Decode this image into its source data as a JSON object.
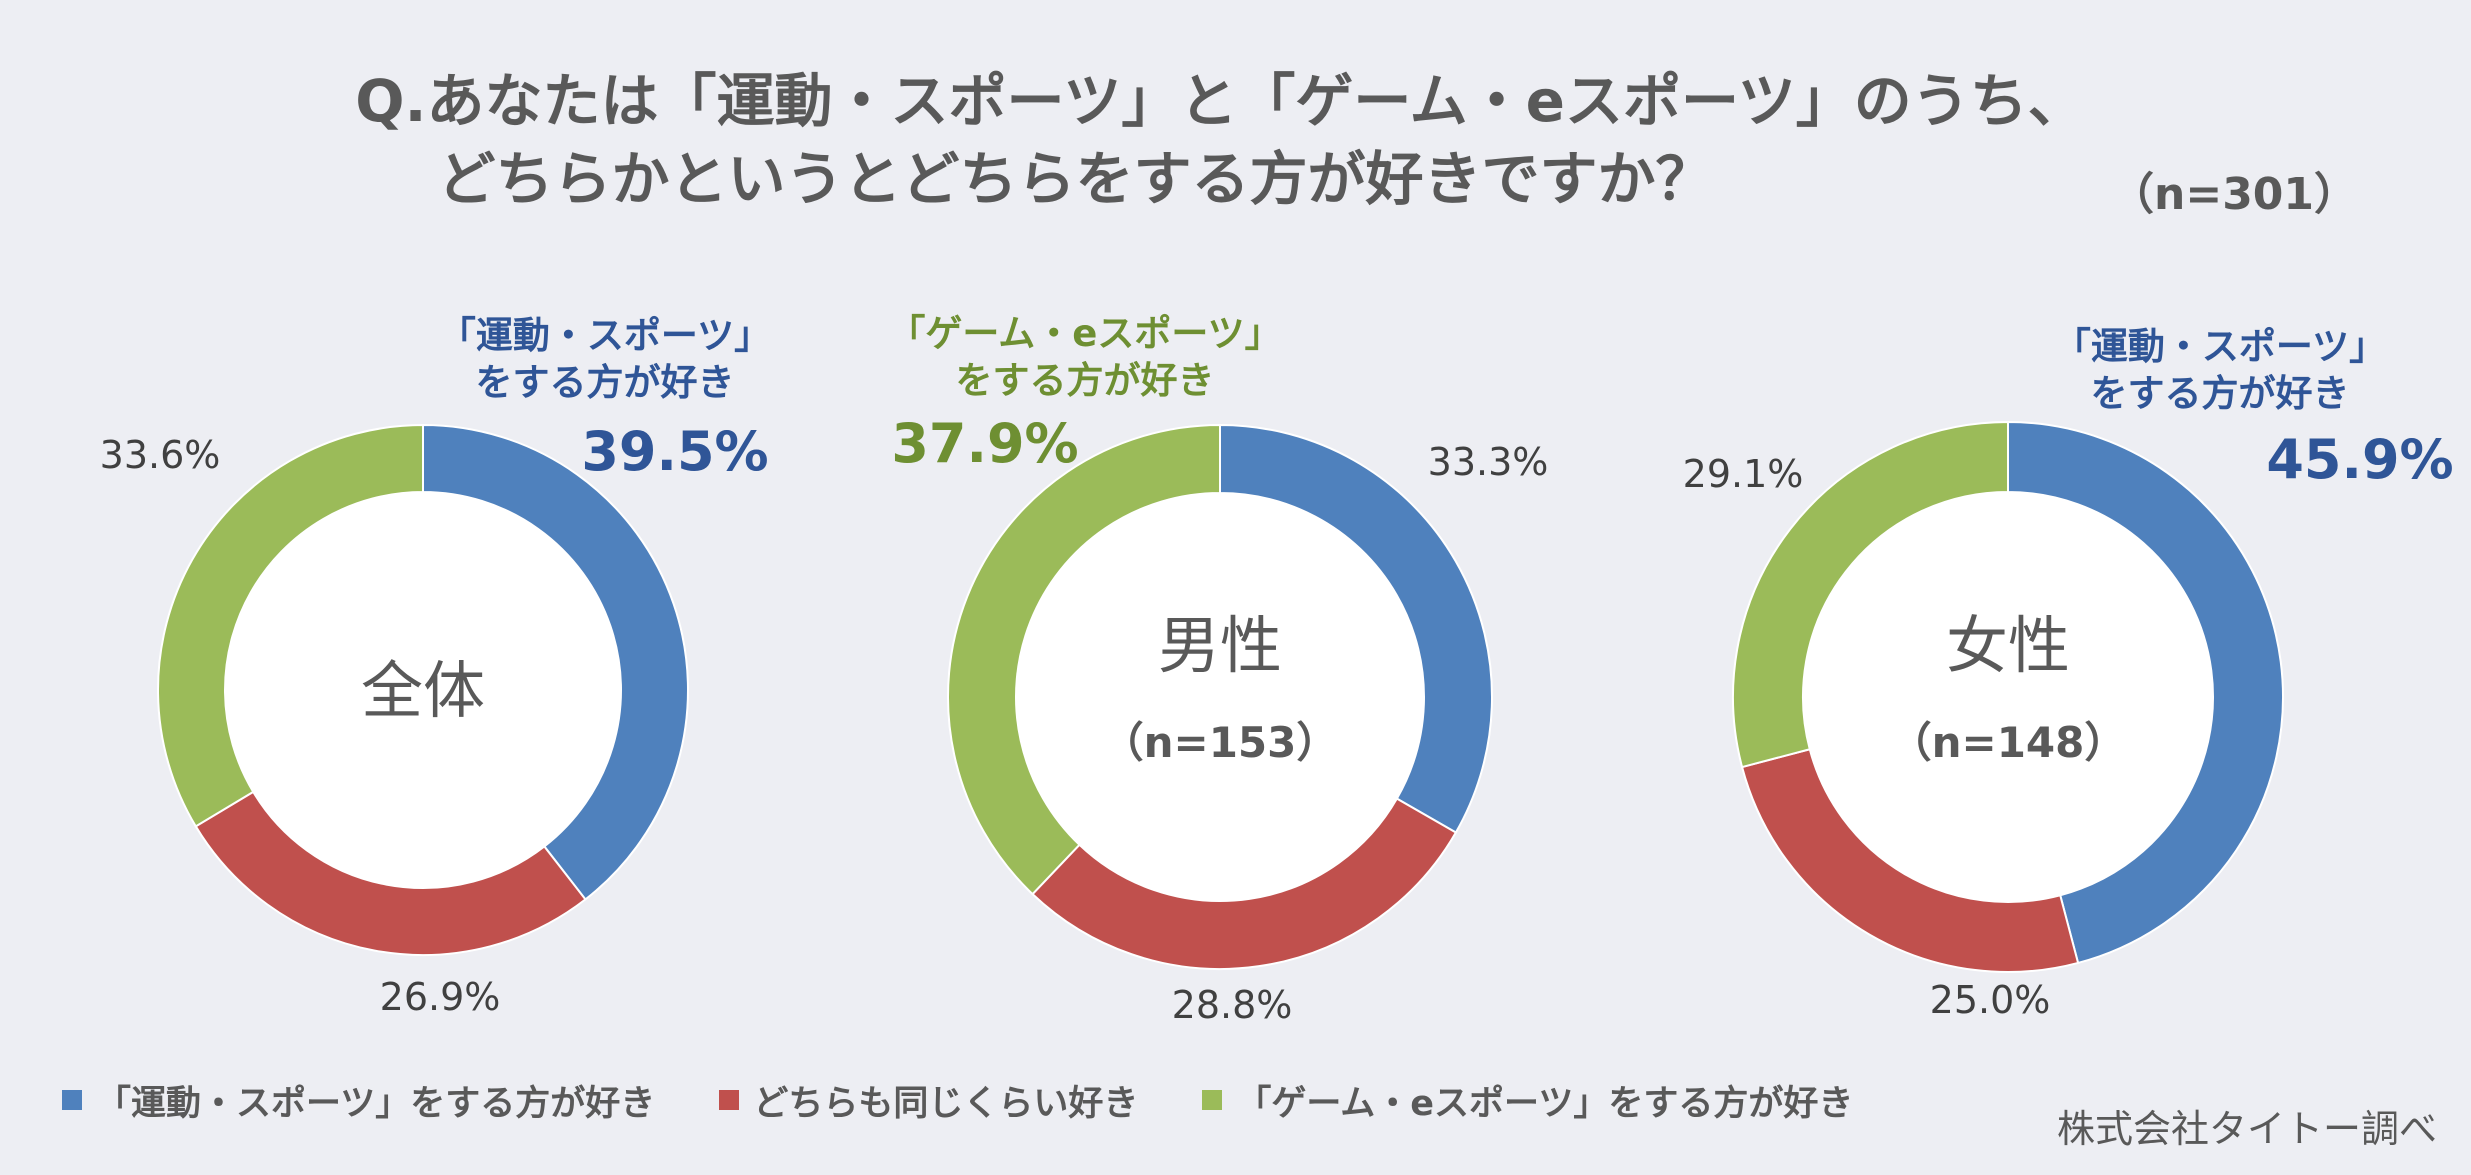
{
  "title": {
    "line1": "Q.あなたは「運動・スポーツ」と「ゲーム・eスポーツ」のうち、",
    "line2": "どちらかというとどちらをする方が好きですか？",
    "n": "（n=301）"
  },
  "colors": {
    "sports": "#4f81bd",
    "same": "#c0504d",
    "game": "#9bbb59",
    "sports_text": "#2f5597",
    "game_text": "#6e8f32"
  },
  "chart_data": {
    "type": "pie",
    "series_names": [
      "「運動・スポーツ」をする方が好き",
      "どちらも同じくらい好き",
      "「ゲーム・eスポーツ」をする方が好き"
    ],
    "charts": [
      {
        "center_label": "全体",
        "sub_label": "",
        "values": [
          39.5,
          26.9,
          33.6
        ],
        "value_labels": [
          "39.5%",
          "26.9%",
          "33.6%"
        ],
        "highlight_index": 0,
        "highlight_title_line1": "「運動・スポーツ」",
        "highlight_title_line2": "をする方が好き"
      },
      {
        "center_label": "男性",
        "sub_label": "（n=153）",
        "values": [
          33.3,
          28.8,
          37.9
        ],
        "value_labels": [
          "33.3%",
          "28.8%",
          "37.9%"
        ],
        "highlight_index": 2,
        "highlight_title_line1": "「ゲーム・eスポーツ」",
        "highlight_title_line2": "をする方が好き"
      },
      {
        "center_label": "女性",
        "sub_label": "（n=148）",
        "values": [
          45.9,
          25.0,
          29.1
        ],
        "value_labels": [
          "45.9%",
          "25.0%",
          "29.1%"
        ],
        "highlight_index": 0,
        "highlight_title_line1": "「運動・スポーツ」",
        "highlight_title_line2": "をする方が好き"
      }
    ]
  },
  "legend": {
    "items": [
      "「運動・スポーツ」をする方が好き",
      "どちらも同じくらい好き",
      "「ゲーム・eスポーツ」をする方が好き"
    ]
  },
  "source": "株式会社タイトー調べ"
}
